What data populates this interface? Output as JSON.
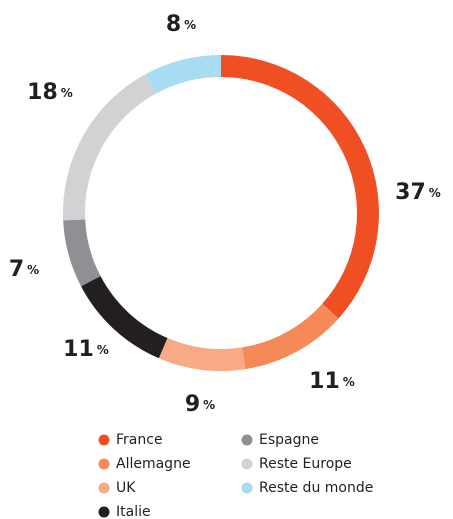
{
  "chart_data": {
    "type": "donut",
    "categories": [
      "France",
      "Allemagne",
      "UK",
      "Italie",
      "Espagne",
      "Reste Europe",
      "Reste du monde"
    ],
    "values": [
      37,
      11,
      9,
      11,
      7,
      18,
      8
    ],
    "colors": [
      "#f04e23",
      "#f58a58",
      "#f7aa85",
      "#231f20",
      "#8e9093",
      "#d1d2d4",
      "#a8dcf2"
    ],
    "unit": "%"
  }
}
